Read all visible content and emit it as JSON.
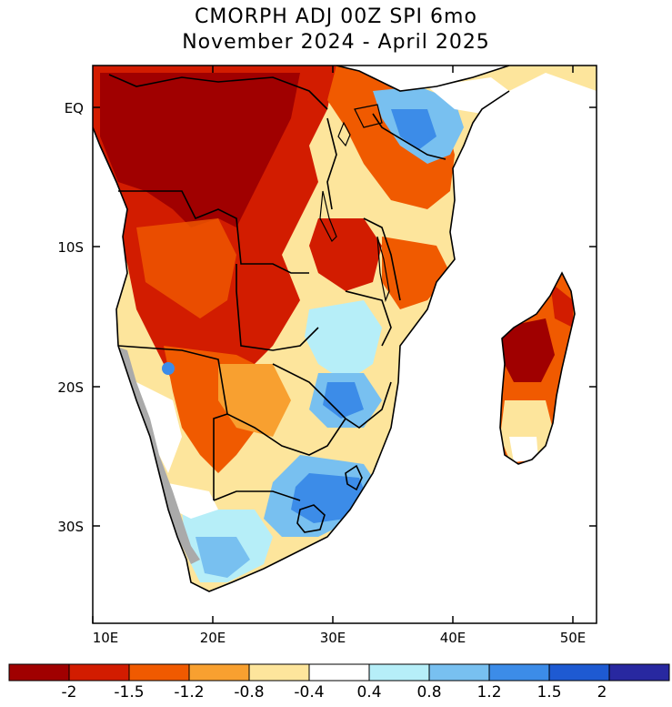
{
  "title": {
    "line1": "CMORPH ADJ 00Z SPI 6mo",
    "line2": "November 2024 - April 2025"
  },
  "axes": {
    "lon_ticks": [
      "10E",
      "20E",
      "30E",
      "40E",
      "50E"
    ],
    "lat_ticks": [
      "EQ",
      "10S",
      "20S",
      "30S"
    ]
  },
  "colorbar": {
    "colors": [
      "#a00000",
      "#d21c00",
      "#f05a00",
      "#f8a030",
      "#fde59c",
      "#ffffff",
      "#b6eef8",
      "#78c0f0",
      "#3c8ce8",
      "#1e5ad2",
      "#2828a0"
    ],
    "labels": [
      "-2",
      "-1.5",
      "-1.2",
      "-0.8",
      "-0.4",
      "0.4",
      "0.8",
      "1.2",
      "1.5",
      "2"
    ]
  },
  "legend_colors": {
    "land_mask": "#aaaaaa",
    "border": "#000000"
  }
}
